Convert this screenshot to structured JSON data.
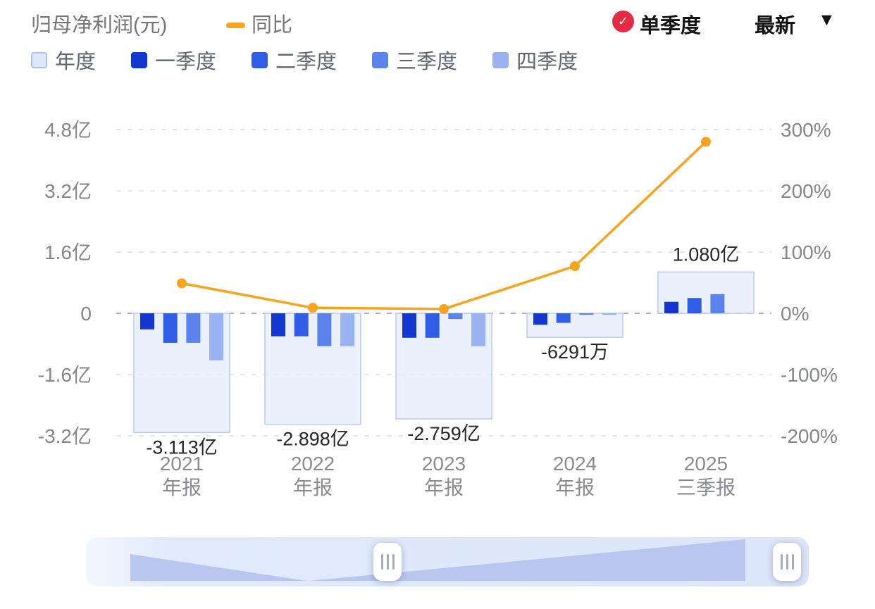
{
  "header": {
    "title": "归母净利润(元)",
    "line_legend": "同比",
    "mode_button": "单季度",
    "latest_dropdown": "最新",
    "caret": "▼",
    "badge_check": "✓"
  },
  "legend": {
    "items": [
      {
        "label": "年度",
        "color": "#dde7fa",
        "border": "#a9c2ef"
      },
      {
        "label": "一季度",
        "color": "#1537d1",
        "border": "#1537d1"
      },
      {
        "label": "二季度",
        "color": "#2f5de5",
        "border": "#2f5de5"
      },
      {
        "label": "三季度",
        "color": "#5c82ec",
        "border": "#5c82ec"
      },
      {
        "label": "四季度",
        "color": "#9ab1f2",
        "border": "#9ab1f2"
      }
    ]
  },
  "colors": {
    "line": "#f8a41e",
    "annual_fill": "#e3ebfb",
    "annual_border": "#b9cbf1",
    "quarter": [
      "#1537d1",
      "#2f5de5",
      "#5c82ec",
      "#9ab1f2"
    ],
    "grid": "#d8d8dc",
    "zero_line": "#97979d",
    "axis_text": "#85868e",
    "value_text": "#26262a",
    "badge_red": "#e62a43",
    "zoom_shadow": "#b5c4ef"
  },
  "chart_data": {
    "type": "bar+line",
    "title": "归母净利润(元)",
    "units": {
      "bars": "亿元",
      "line": "%"
    },
    "series_names": {
      "annual": "年度",
      "q1": "一季度",
      "q2": "二季度",
      "q3": "三季度",
      "q4": "四季度",
      "line": "同比"
    },
    "left_axis_ticks": [
      {
        "label": "4.8亿",
        "value_yi": 4.8
      },
      {
        "label": "3.2亿",
        "value_yi": 3.2
      },
      {
        "label": "1.6亿",
        "value_yi": 1.6
      },
      {
        "label": "0",
        "value_yi": 0
      },
      {
        "label": "-1.6亿",
        "value_yi": -1.6
      },
      {
        "label": "-3.2亿",
        "value_yi": -3.2
      }
    ],
    "right_axis_ticks": [
      {
        "label": "300%",
        "value_pct": 300
      },
      {
        "label": "200%",
        "value_pct": 200
      },
      {
        "label": "100%",
        "value_pct": 100
      },
      {
        "label": "0%",
        "value_pct": 0
      },
      {
        "label": "-100%",
        "value_pct": -100
      },
      {
        "label": "-200%",
        "value_pct": -200
      }
    ],
    "groups": [
      {
        "year": "2021",
        "period": "年报",
        "annual_yi": -3.113,
        "annual_label": "-3.113亿",
        "quarters_yi": [
          -0.42,
          -0.77,
          -0.77,
          -1.23
        ],
        "yoy_pct": 49
      },
      {
        "year": "2022",
        "period": "年报",
        "annual_yi": -2.898,
        "annual_label": "-2.898亿",
        "quarters_yi": [
          -0.6,
          -0.6,
          -0.86,
          -0.86
        ],
        "yoy_pct": 9
      },
      {
        "year": "2023",
        "period": "年报",
        "annual_yi": -2.759,
        "annual_label": "-2.759亿",
        "quarters_yi": [
          -0.64,
          -0.64,
          -0.15,
          -0.86
        ],
        "yoy_pct": 7
      },
      {
        "year": "2024",
        "period": "年报",
        "annual_yi": -0.6291,
        "annual_label": "-6291万",
        "quarters_yi": [
          -0.3,
          -0.25,
          -0.04,
          -0.04
        ],
        "yoy_pct": 77
      },
      {
        "year": "2025",
        "period": "三季报",
        "annual_yi": 1.08,
        "annual_label": "1.080亿",
        "quarters_yi": [
          0.3,
          0.4,
          0.5,
          null
        ],
        "yoy_pct": 280
      }
    ]
  }
}
